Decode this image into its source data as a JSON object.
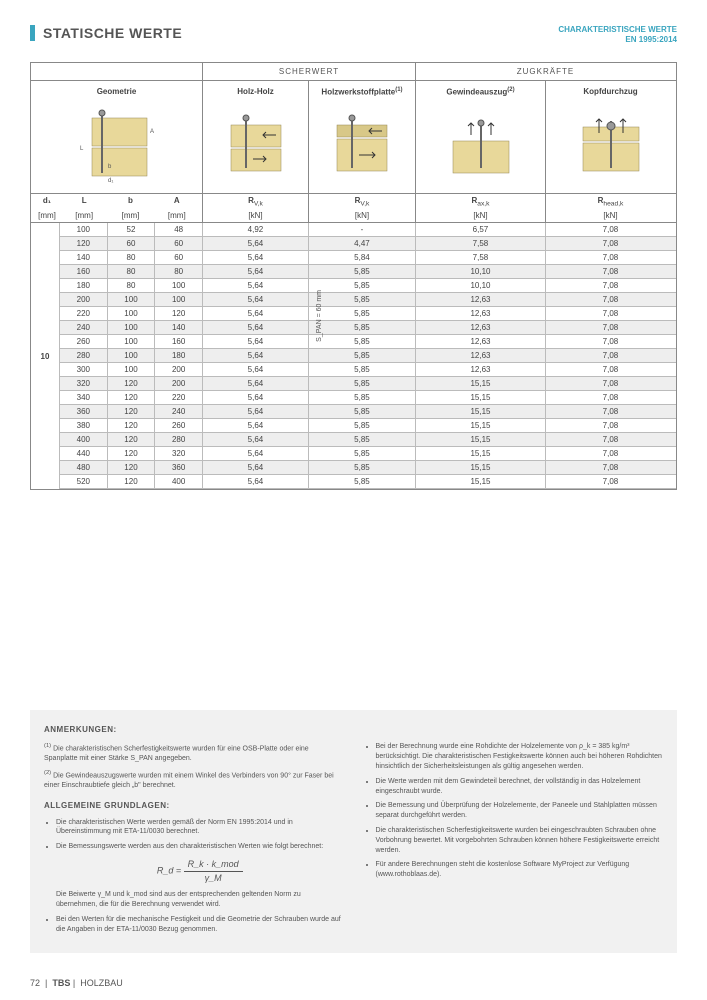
{
  "header": {
    "title": "STATISCHE WERTE",
    "subtitle_line1": "CHARAKTERISTISCHE WERTE",
    "subtitle_line2": "EN 1995:2014"
  },
  "groups": {
    "scher": "SCHERWERT",
    "zug": "ZUGKRÄFTE"
  },
  "columns": {
    "geo": "Geometrie",
    "hh": "Holz-Holz",
    "hw": "Holzwerkstoffplatte",
    "hw_sup": "(1)",
    "gew": "Gewindeauszug",
    "gew_sup": "(2)",
    "kopf": "Kopfdurchzug"
  },
  "sub_geo": {
    "d1": "d₁",
    "L": "L",
    "b": "b",
    "A": "A"
  },
  "symbols": {
    "hh": "R",
    "hh_sub": "V,k",
    "hw": "R",
    "hw_sub": "V,k",
    "gew": "R",
    "gew_sub": "ax,k",
    "kopf": "R",
    "kopf_sub": "head,k"
  },
  "units": {
    "mm": "[mm]",
    "kn": "[kN]"
  },
  "d1_value": "10",
  "side_label": "S_PAN = 60 mm",
  "rows": [
    {
      "L": "100",
      "b": "52",
      "A": "48",
      "hh": "4,92",
      "hw": "-",
      "gew": "6,57",
      "kopf": "7,08"
    },
    {
      "L": "120",
      "b": "60",
      "A": "60",
      "hh": "5,64",
      "hw": "4,47",
      "gew": "7,58",
      "kopf": "7,08"
    },
    {
      "L": "140",
      "b": "80",
      "A": "60",
      "hh": "5,64",
      "hw": "5,84",
      "gew": "7,58",
      "kopf": "7,08"
    },
    {
      "L": "160",
      "b": "80",
      "A": "80",
      "hh": "5,64",
      "hw": "5,85",
      "gew": "10,10",
      "kopf": "7,08"
    },
    {
      "L": "180",
      "b": "80",
      "A": "100",
      "hh": "5,64",
      "hw": "5,85",
      "gew": "10,10",
      "kopf": "7,08"
    },
    {
      "L": "200",
      "b": "100",
      "A": "100",
      "hh": "5,64",
      "hw": "5,85",
      "gew": "12,63",
      "kopf": "7,08"
    },
    {
      "L": "220",
      "b": "100",
      "A": "120",
      "hh": "5,64",
      "hw": "5,85",
      "gew": "12,63",
      "kopf": "7,08"
    },
    {
      "L": "240",
      "b": "100",
      "A": "140",
      "hh": "5,64",
      "hw": "5,85",
      "gew": "12,63",
      "kopf": "7,08"
    },
    {
      "L": "260",
      "b": "100",
      "A": "160",
      "hh": "5,64",
      "hw": "5,85",
      "gew": "12,63",
      "kopf": "7,08"
    },
    {
      "L": "280",
      "b": "100",
      "A": "180",
      "hh": "5,64",
      "hw": "5,85",
      "gew": "12,63",
      "kopf": "7,08"
    },
    {
      "L": "300",
      "b": "100",
      "A": "200",
      "hh": "5,64",
      "hw": "5,85",
      "gew": "12,63",
      "kopf": "7,08"
    },
    {
      "L": "320",
      "b": "120",
      "A": "200",
      "hh": "5,64",
      "hw": "5,85",
      "gew": "15,15",
      "kopf": "7,08"
    },
    {
      "L": "340",
      "b": "120",
      "A": "220",
      "hh": "5,64",
      "hw": "5,85",
      "gew": "15,15",
      "kopf": "7,08"
    },
    {
      "L": "360",
      "b": "120",
      "A": "240",
      "hh": "5,64",
      "hw": "5,85",
      "gew": "15,15",
      "kopf": "7,08"
    },
    {
      "L": "380",
      "b": "120",
      "A": "260",
      "hh": "5,64",
      "hw": "5,85",
      "gew": "15,15",
      "kopf": "7,08"
    },
    {
      "L": "400",
      "b": "120",
      "A": "280",
      "hh": "5,64",
      "hw": "5,85",
      "gew": "15,15",
      "kopf": "7,08"
    },
    {
      "L": "440",
      "b": "120",
      "A": "320",
      "hh": "5,64",
      "hw": "5,85",
      "gew": "15,15",
      "kopf": "7,08"
    },
    {
      "L": "480",
      "b": "120",
      "A": "360",
      "hh": "5,64",
      "hw": "5,85",
      "gew": "15,15",
      "kopf": "7,08"
    },
    {
      "L": "520",
      "b": "120",
      "A": "400",
      "hh": "5,64",
      "hw": "5,85",
      "gew": "15,15",
      "kopf": "7,08"
    }
  ],
  "notes": {
    "anmerkungen_head": "ANMERKUNGEN:",
    "note1_pre": "(1)",
    "note1": "Die charakteristischen Scherfestigkeitswerte wurden für eine OSB-Platte oder eine Spanplatte mit einer Stärke S_PAN angegeben.",
    "note2_pre": "(2)",
    "note2": "Die Gewindeauszugswerte wurden mit einem Winkel des Verbinders von 90° zur Faser bei einer Einschraubtiefe gleich „b\" berechnet.",
    "allg_head": "ALLGEMEINE GRUNDLAGEN:",
    "left1": "Die charakteristischen Werte werden gemäß der Norm EN 1995:2014 und in Übereinstimmung mit ETA-11/0030 berechnet.",
    "left2": "Die Bemessungswerte werden aus den charakteristischen Werten wie folgt berechnet:",
    "formula_left": "R_d =",
    "formula_num": "R_k · k_mod",
    "formula_den": "γ_M",
    "left3": "Die Beiwerte γ_M und k_mod sind aus der entsprechenden geltenden Norm zu übernehmen, die für die Berechnung verwendet wird.",
    "left4": "Bei den Werten für die mechanische Festigkeit und die Geometrie der Schrauben wurde auf die Angaben in der ETA-11/0030 Bezug genommen.",
    "right1": "Bei der Berechnung wurde eine Rohdichte der Holzelemente von ρ_k = 385 kg/m³ berücksichtigt. Die charakteristischen Festigkeitswerte können auch bei höheren Rohdichten hinsichtlich der Sicherheitsleistungen als gültig angesehen werden.",
    "right2": "Die Werte werden mit dem Gewindeteil berechnet, der vollständig in das Holzelement eingeschraubt wurde.",
    "right3": "Die Bemessung und Überprüfung der Holzelemente, der Paneele und Stahlplatten müssen separat durchgeführt werden.",
    "right4": "Die charakteristischen Scherfestigkeitswerte wurden bei eingeschraubten Schrauben ohne Vorbohrung bewertet. Mit vorgebohrten Schrauben können höhere Festigkeitswerte erreicht werden.",
    "right5": "Für andere Berechnungen steht die kostenlose Software MyProject zur Verfügung (www.rothoblaas.de)."
  },
  "footer": {
    "page": "72",
    "brand": "TBS",
    "section": "HOLZBAU"
  },
  "colors": {
    "accent": "#3aa5bf",
    "wood": "#e8d89a",
    "wood_stroke": "#948652"
  }
}
